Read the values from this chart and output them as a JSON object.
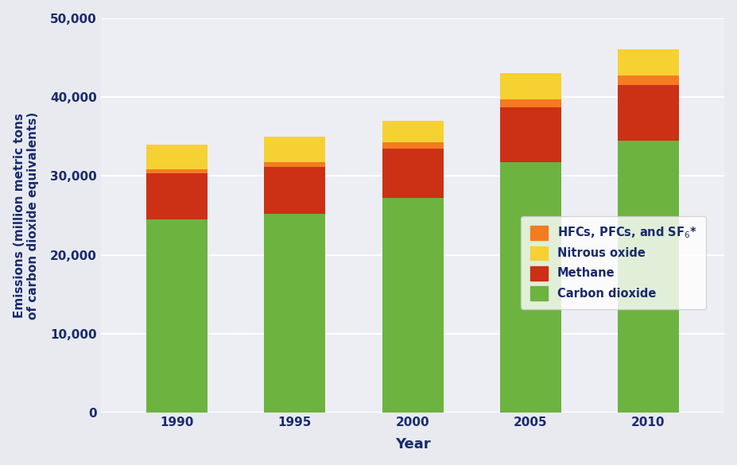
{
  "years": [
    "1990",
    "1995",
    "2000",
    "2005",
    "2010"
  ],
  "carbon_dioxide": [
    24500,
    25200,
    27200,
    31700,
    34500
  ],
  "methane": [
    5800,
    5900,
    6300,
    7000,
    7000
  ],
  "hfcs_pfcs_sf6": [
    500,
    600,
    800,
    1000,
    1200
  ],
  "nitrous_oxide": [
    3200,
    3300,
    2700,
    3300,
    3300
  ],
  "colors": {
    "carbon_dioxide": "#6db33f",
    "methane": "#cc3015",
    "hfcs_pfcs_sf6": "#f47b20",
    "nitrous_oxide": "#f5d132"
  },
  "legend_labels": {
    "hfcs_pfcs_sf6": "HFCs, PFCs, and SF$_6$*",
    "nitrous_oxide": "Nitrous oxide",
    "methane": "Methane",
    "carbon_dioxide": "Carbon dioxide"
  },
  "ylabel": "Emissions (million metric tons\nof carbon dioxide equivalents)",
  "xlabel": "Year",
  "ylim": [
    0,
    50000
  ],
  "yticks": [
    0,
    10000,
    20000,
    30000,
    40000,
    50000
  ],
  "ytick_labels": [
    "0",
    "10,000",
    "20,000",
    "30,000",
    "40,000",
    "50,000"
  ],
  "background_color": "#e8eaf0",
  "plot_background": "#eceef4",
  "text_color": "#1a2b6b",
  "bar_width": 0.52
}
